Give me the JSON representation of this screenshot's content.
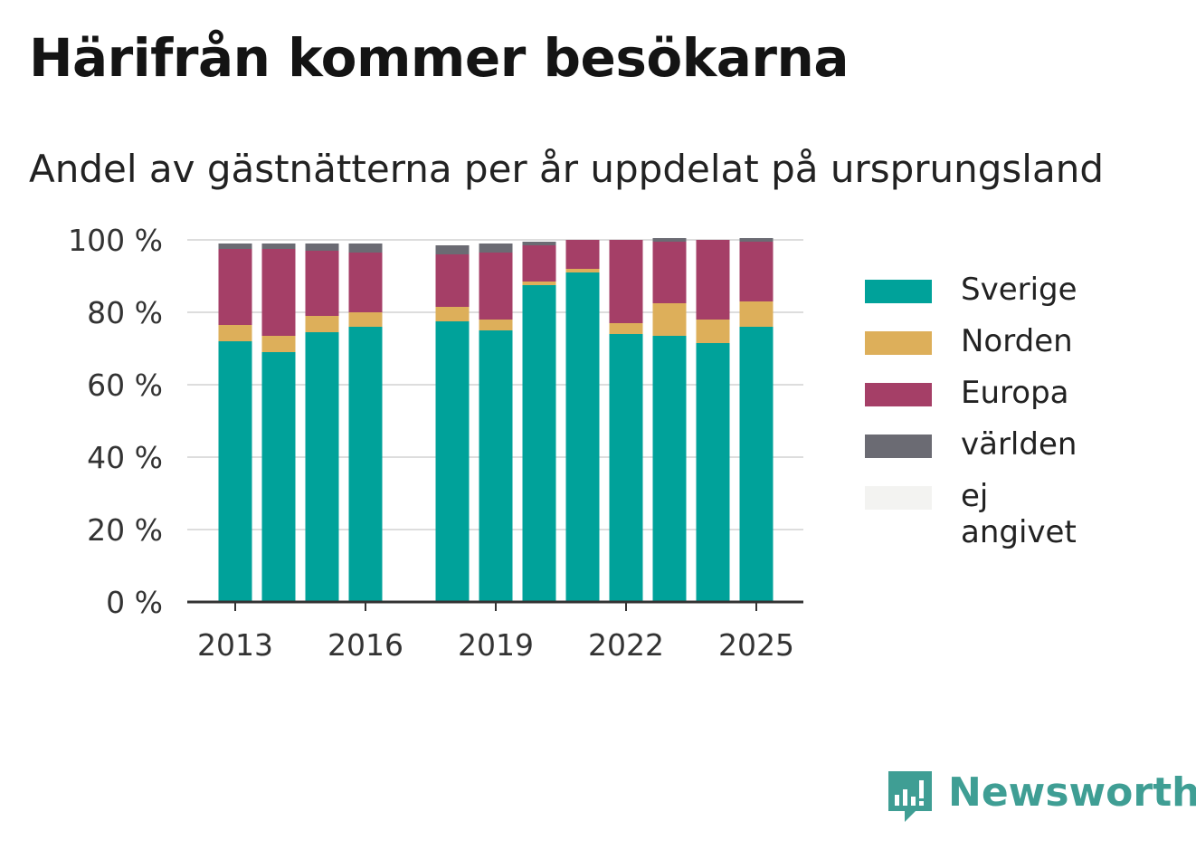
{
  "title": "Härifrån kommer besökarna",
  "subtitle": "Andel av gästnätterna per år uppdelat på ursprungsland",
  "brand": {
    "name": "Newsworthy",
    "icon": "newsworthy-logo-icon",
    "color": "#3f9e94"
  },
  "chart_data": {
    "type": "bar",
    "stacked": true,
    "title": "Härifrån kommer besökarna",
    "subtitle": "Andel av gästnätterna per år uppdelat på ursprungsland",
    "x": [
      2013,
      2014,
      2015,
      2016,
      2017,
      2018,
      2019,
      2020,
      2021,
      2022,
      2023,
      2024,
      2025
    ],
    "x_ticks": [
      "2013",
      "2016",
      "2019",
      "2022",
      "2025"
    ],
    "y_ticks": [
      "0 %",
      "20 %",
      "40 %",
      "60 %",
      "80 %",
      "100 %"
    ],
    "ylim": [
      0,
      100
    ],
    "grid": true,
    "legend_position": "right",
    "series": [
      {
        "name": "Sverige",
        "color": "#00a29a",
        "values": [
          72,
          69,
          74.5,
          76,
          null,
          77.5,
          75,
          87.5,
          91,
          74,
          73.5,
          71.5,
          76
        ]
      },
      {
        "name": "Norden",
        "color": "#ddaf5a",
        "values": [
          4.5,
          4.5,
          4.5,
          4,
          null,
          4,
          3,
          1,
          1,
          3,
          9,
          6.5,
          7
        ]
      },
      {
        "name": "Europa",
        "color": "#a53f67",
        "values": [
          21,
          24,
          18,
          16.5,
          null,
          14.5,
          18.5,
          10,
          8,
          23,
          17,
          22,
          16.5
        ]
      },
      {
        "name": "världen",
        "color": "#6b6b73",
        "values": [
          1.5,
          1.5,
          2,
          2.5,
          null,
          2.5,
          2.5,
          1,
          0,
          0,
          1,
          0,
          1
        ]
      },
      {
        "name": "ej angivet",
        "color": "#f3f3f1",
        "values": [
          0,
          0,
          0,
          0,
          null,
          0,
          0,
          0,
          0,
          0,
          0,
          0,
          0
        ]
      }
    ]
  }
}
